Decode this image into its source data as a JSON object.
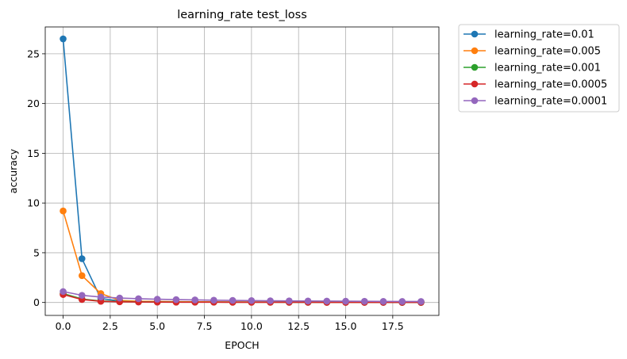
{
  "chart_data": {
    "type": "line",
    "title": "learning_rate test_loss",
    "xlabel": "EPOCH",
    "ylabel": "accuracy",
    "xlim": [
      -0.95,
      19.95
    ],
    "ylim": [
      -1.3,
      27.7
    ],
    "xticks": [
      0.0,
      2.5,
      5.0,
      7.5,
      10.0,
      12.5,
      15.0,
      17.5
    ],
    "xtick_labels": [
      "0.0",
      "2.5",
      "5.0",
      "7.5",
      "10.0",
      "12.5",
      "15.0",
      "17.5"
    ],
    "yticks": [
      0,
      5,
      10,
      15,
      20,
      25
    ],
    "ytick_labels": [
      "0",
      "5",
      "10",
      "15",
      "20",
      "25"
    ],
    "grid": true,
    "legend_position": "outside-top-right",
    "x": [
      0,
      1,
      2,
      3,
      4,
      5,
      6,
      7,
      8,
      9,
      10,
      11,
      12,
      13,
      14,
      15,
      16,
      17,
      18,
      19
    ],
    "series": [
      {
        "name": "learning_rate=0.01",
        "color": "#1f77b4",
        "values": [
          26.5,
          4.4,
          0.4,
          0.15,
          0.1,
          0.08,
          0.07,
          0.06,
          0.05,
          0.05,
          0.04,
          0.04,
          0.04,
          0.03,
          0.03,
          0.03,
          0.03,
          0.02,
          0.02,
          0.02
        ]
      },
      {
        "name": "learning_rate=0.005",
        "color": "#ff7f0e",
        "values": [
          9.2,
          2.7,
          0.9,
          0.2,
          0.12,
          0.1,
          0.08,
          0.07,
          0.06,
          0.05,
          0.05,
          0.04,
          0.04,
          0.04,
          0.03,
          0.03,
          0.03,
          0.03,
          0.02,
          0.02
        ]
      },
      {
        "name": "learning_rate=0.001",
        "color": "#2ca02c",
        "values": [
          0.9,
          0.35,
          0.15,
          0.1,
          0.07,
          0.05,
          0.05,
          0.04,
          0.04,
          0.03,
          0.03,
          0.03,
          0.02,
          0.02,
          0.02,
          0.02,
          0.02,
          0.02,
          0.01,
          0.01
        ]
      },
      {
        "name": "learning_rate=0.0005",
        "color": "#d62728",
        "values": [
          0.8,
          0.3,
          0.12,
          0.07,
          0.05,
          0.04,
          0.03,
          0.03,
          0.03,
          0.02,
          0.02,
          0.02,
          0.02,
          0.02,
          0.01,
          0.01,
          0.01,
          0.01,
          0.01,
          0.01
        ]
      },
      {
        "name": "learning_rate=0.0001",
        "color": "#9467bd",
        "values": [
          1.1,
          0.72,
          0.55,
          0.45,
          0.38,
          0.33,
          0.29,
          0.26,
          0.23,
          0.21,
          0.19,
          0.17,
          0.16,
          0.15,
          0.14,
          0.13,
          0.12,
          0.11,
          0.1,
          0.1
        ]
      }
    ]
  }
}
